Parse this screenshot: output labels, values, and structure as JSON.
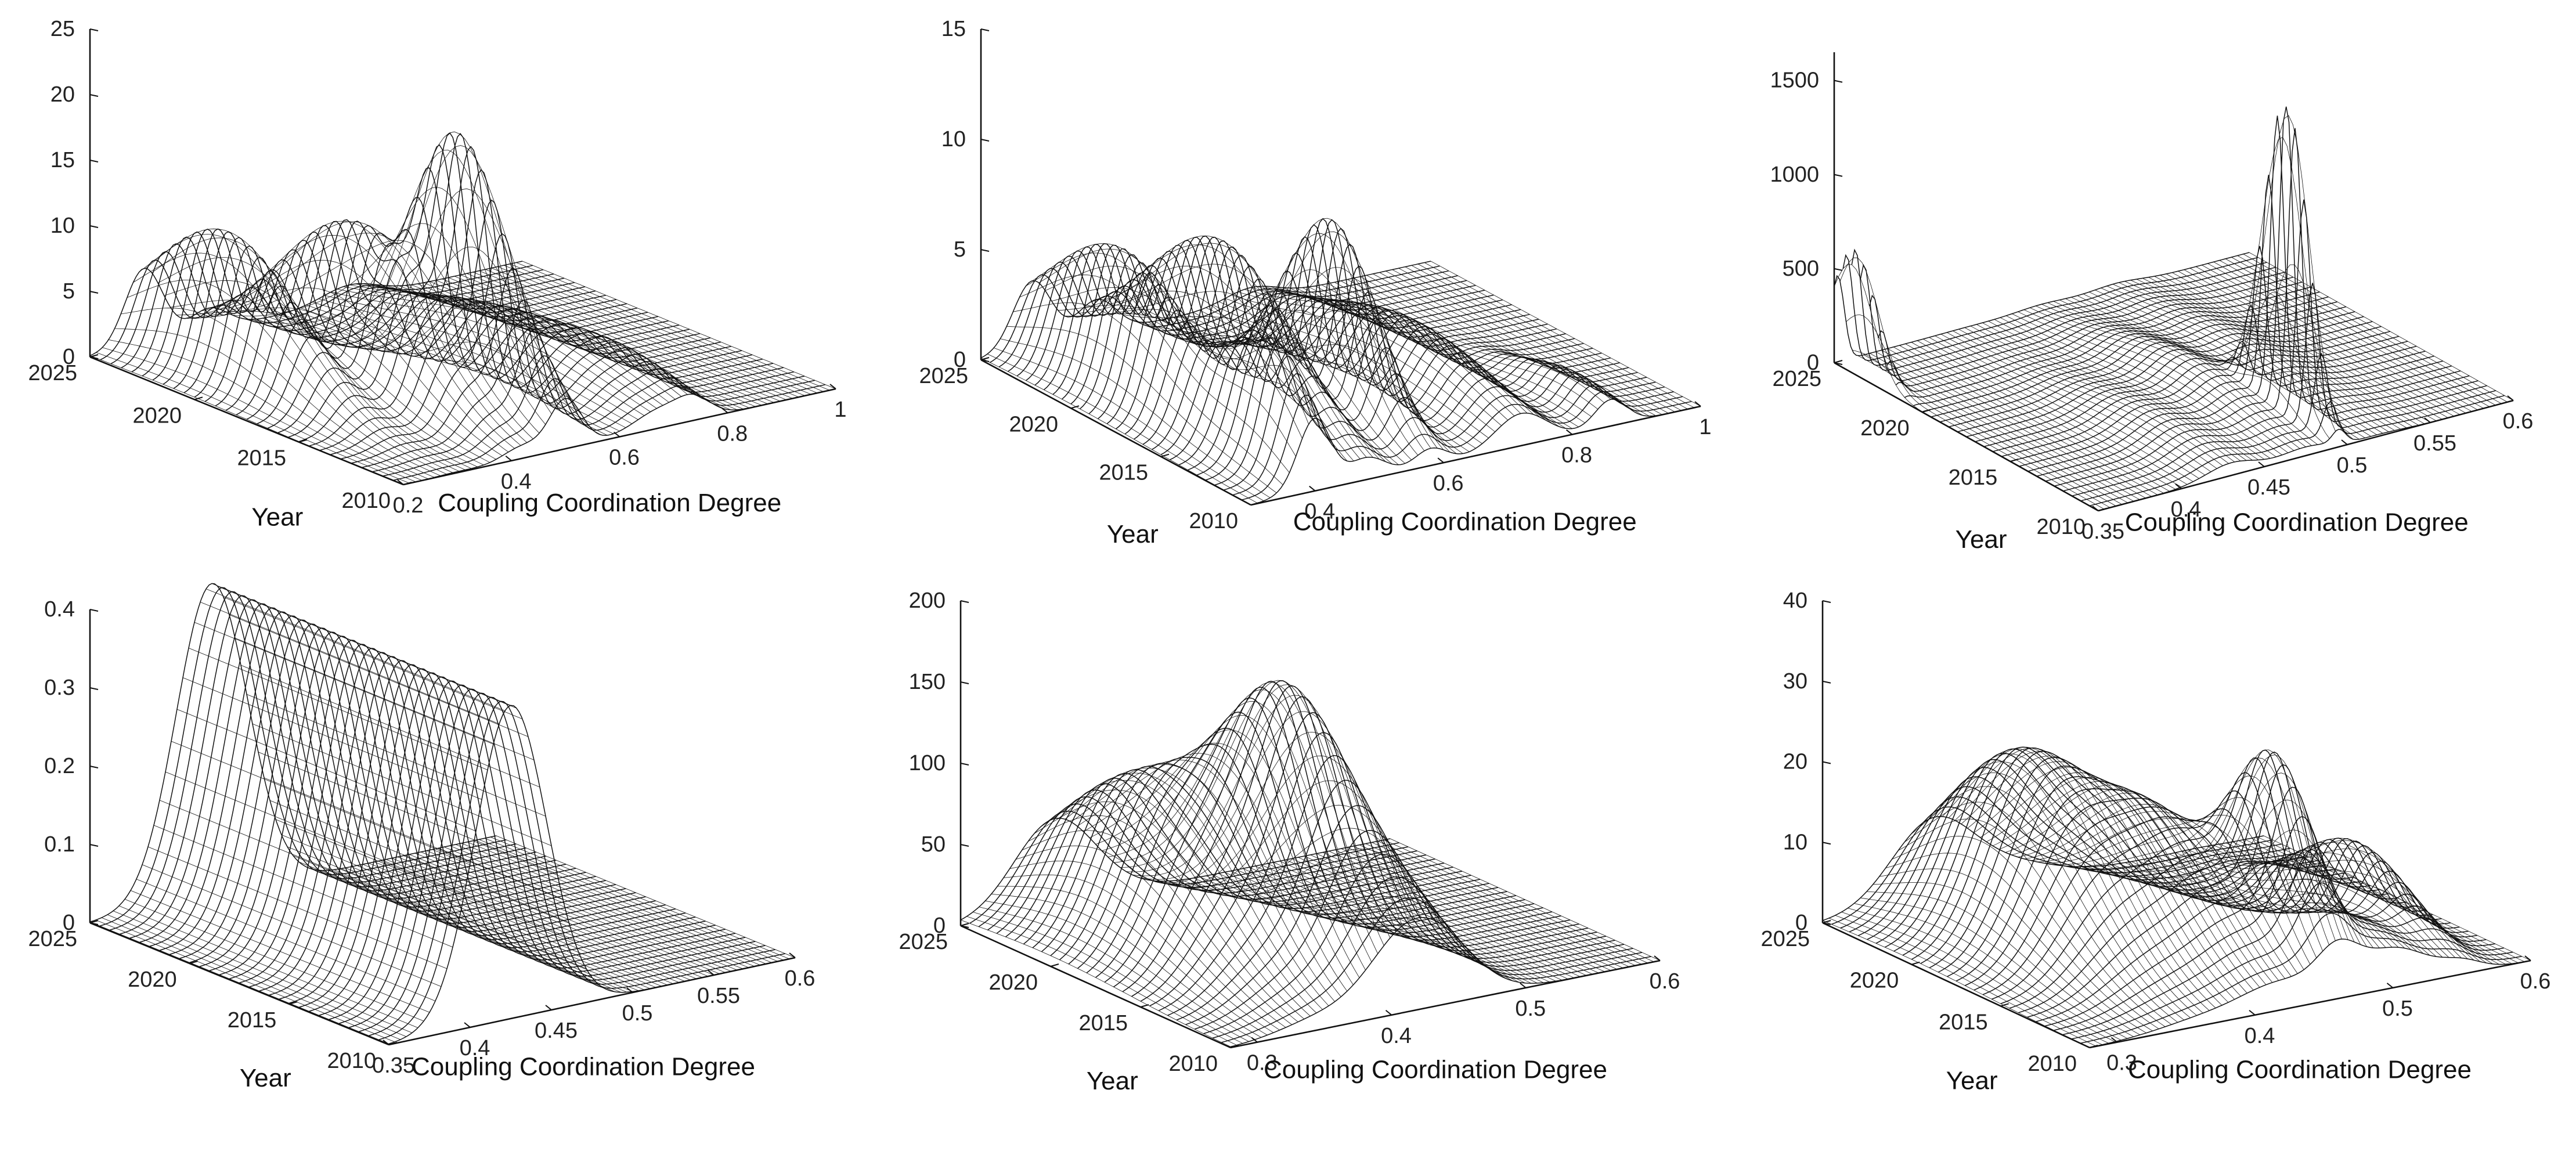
{
  "chart_data": [
    {
      "type": "surface",
      "xlabel": "Coupling Coordination Degree",
      "ylabel": "Year",
      "zlabel": "",
      "xlim": [
        0.2,
        1.0
      ],
      "ylim": [
        2010,
        2025
      ],
      "zlim": [
        0,
        25
      ],
      "xticks": [
        "0.2",
        "0.4",
        "0.6",
        "0.8",
        "1"
      ],
      "yticks": [
        "2010",
        "2015",
        "2020",
        "2025"
      ],
      "zticks": [
        "0",
        "5",
        "10",
        "15",
        "20",
        "25"
      ],
      "peaks": [
        {
          "x": 0.3,
          "y": 2021.0,
          "z": 11.2,
          "wx": 0.035,
          "wy": 3.5
        },
        {
          "x": 0.42,
          "y": 2018.0,
          "z": 12.6,
          "wx": 0.035,
          "wy": 3.5
        },
        {
          "x": 0.5,
          "y": 2015.5,
          "z": 15.5,
          "wx": 0.03,
          "wy": 2.0
        },
        {
          "x": 0.5,
          "y": 2013.0,
          "z": 7.0,
          "wx": 0.03,
          "wy": 2.5
        },
        {
          "x": 0.68,
          "y": 2017.0,
          "z": 4.0,
          "wx": 0.05,
          "wy": 5.0
        },
        {
          "x": 0.74,
          "y": 2013.0,
          "z": 2.0,
          "wx": 0.03,
          "wy": 3.0
        }
      ]
    },
    {
      "type": "surface",
      "xlabel": "Coupling Coordination Degree",
      "ylabel": "Year",
      "zlabel": "",
      "xlim": [
        0.3,
        1.0
      ],
      "ylim": [
        2010,
        2025
      ],
      "zlim": [
        0,
        15
      ],
      "xticks": [
        "0.4",
        "0.6",
        "0.8",
        "1"
      ],
      "yticks": [
        "2010",
        "2015",
        "2020",
        "2025"
      ],
      "zticks": [
        "0",
        "5",
        "10",
        "15"
      ],
      "peaks": [
        {
          "x": 0.38,
          "y": 2020.0,
          "z": 6.7,
          "wx": 0.03,
          "wy": 4.0
        },
        {
          "x": 0.48,
          "y": 2018.0,
          "z": 7.3,
          "wx": 0.03,
          "wy": 4.0
        },
        {
          "x": 0.58,
          "y": 2015.5,
          "z": 8.7,
          "wx": 0.025,
          "wy": 2.5
        },
        {
          "x": 0.4,
          "y": 2012.0,
          "z": 5.0,
          "wx": 0.025,
          "wy": 2.0
        },
        {
          "x": 0.72,
          "y": 2016.0,
          "z": 3.0,
          "wx": 0.04,
          "wy": 5.0
        },
        {
          "x": 0.86,
          "y": 2012.0,
          "z": 1.5,
          "wx": 0.025,
          "wy": 3.0
        }
      ]
    },
    {
      "type": "surface",
      "xlabel": "Coupling Coordination Degree",
      "ylabel": "Year",
      "zlabel": "",
      "xlim": [
        0.35,
        0.6
      ],
      "ylim": [
        2010,
        2025
      ],
      "zlim": [
        0,
        1650
      ],
      "xticks": [
        "0.35",
        "0.4",
        "0.45",
        "0.5",
        "0.55",
        "0.6"
      ],
      "yticks": [
        "2010",
        "2015",
        "2020",
        "2025"
      ],
      "zticks": [
        "0",
        "500",
        "1000",
        "1500"
      ],
      "peaks": [
        {
          "x": 0.352,
          "y": 2024.0,
          "z": 650,
          "wx": 0.004,
          "wy": 1.2
        },
        {
          "x": 0.495,
          "y": 2013.0,
          "z": 1650,
          "wx": 0.004,
          "wy": 1.2
        },
        {
          "x": 0.475,
          "y": 2016.5,
          "z": 170,
          "wx": 0.015,
          "wy": 4.0
        },
        {
          "x": 0.43,
          "y": 2014.0,
          "z": 110,
          "wx": 0.015,
          "wy": 4.0
        },
        {
          "x": 0.52,
          "y": 2018.5,
          "z": 90,
          "wx": 0.015,
          "wy": 4.0
        }
      ]
    },
    {
      "type": "surface",
      "xlabel": "Coupling Coordination Degree",
      "ylabel": "Year",
      "zlabel": "",
      "xlim": [
        0.35,
        0.6
      ],
      "ylim": [
        2010,
        2025
      ],
      "zlim": [
        0,
        0.4
      ],
      "xticks": [
        "0.35",
        "0.4",
        "0.45",
        "0.5",
        "0.55",
        "0.6"
      ],
      "yticks": [
        "2010",
        "2015",
        "2020",
        "2025"
      ],
      "zticks": [
        "0",
        "0.1",
        "0.2",
        "0.3",
        "0.4"
      ],
      "peaks": [
        {
          "x": 0.425,
          "y": 2017.5,
          "z": 0.4,
          "wx": 0.022,
          "wy": 200
        }
      ]
    },
    {
      "type": "surface",
      "xlabel": "Coupling Coordination Degree",
      "ylabel": "Year",
      "zlabel": "",
      "xlim": [
        0.28,
        0.6
      ],
      "ylim": [
        2010,
        2025
      ],
      "zlim": [
        0,
        200
      ],
      "xticks": [
        "0.3",
        "0.4",
        "0.5",
        "0.6"
      ],
      "yticks": [
        "2010",
        "2015",
        "2020",
        "2025"
      ],
      "zticks": [
        "0",
        "50",
        "100",
        "150",
        "200"
      ],
      "peaks": [
        {
          "x": 0.35,
          "y": 2020.0,
          "z": 100,
          "wx": 0.03,
          "wy": 4.5
        },
        {
          "x": 0.4,
          "y": 2016.0,
          "z": 145,
          "wx": 0.025,
          "wy": 3.0
        },
        {
          "x": 0.43,
          "y": 2012.0,
          "z": 55,
          "wx": 0.03,
          "wy": 3.0
        }
      ]
    },
    {
      "type": "surface",
      "xlabel": "Coupling Coordination Degree",
      "ylabel": "Year",
      "zlabel": "",
      "xlim": [
        0.28,
        0.6
      ],
      "ylim": [
        2010,
        2025
      ],
      "zlim": [
        0,
        40
      ],
      "xticks": [
        "0.3",
        "0.4",
        "0.5",
        "0.6"
      ],
      "yticks": [
        "2010",
        "2015",
        "2020",
        "2025"
      ],
      "zticks": [
        "0",
        "10",
        "20",
        "30",
        "40"
      ],
      "peaks": [
        {
          "x": 0.36,
          "y": 2020.0,
          "z": 22,
          "wx": 0.03,
          "wy": 4.0
        },
        {
          "x": 0.42,
          "y": 2017.0,
          "z": 16,
          "wx": 0.03,
          "wy": 4.0
        },
        {
          "x": 0.46,
          "y": 2013.5,
          "z": 21,
          "wx": 0.015,
          "wy": 2.0
        },
        {
          "x": 0.55,
          "y": 2016.0,
          "z": 10,
          "wx": 0.015,
          "wy": 3.0
        },
        {
          "x": 0.5,
          "y": 2012.0,
          "z": 6,
          "wx": 0.025,
          "wy": 3.0
        }
      ]
    }
  ]
}
